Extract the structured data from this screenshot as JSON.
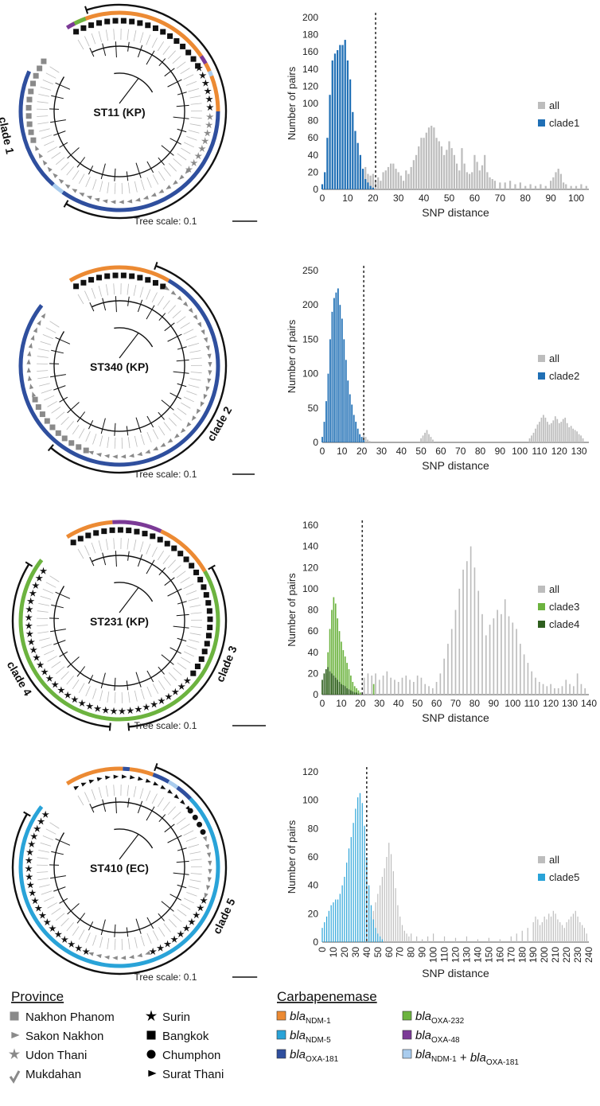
{
  "chart_data": [
    {
      "type": "bar",
      "panel": 1,
      "ylabel": "Number of pairs",
      "xlabel": "SNP distance",
      "ylim": [
        0,
        200
      ],
      "yticks": [
        0,
        20,
        40,
        60,
        80,
        100,
        120,
        140,
        160,
        180,
        200
      ],
      "xlim": [
        0,
        105
      ],
      "xticks": [
        0,
        10,
        20,
        30,
        40,
        50,
        60,
        70,
        80,
        90,
        100
      ],
      "threshold": 21,
      "legend": [
        {
          "label": "all",
          "color": "#bdbdbd"
        },
        {
          "label": "clade1",
          "color": "#1f6fb5"
        }
      ],
      "series": [
        {
          "name": "all",
          "color": "#bdbdbd",
          "x": [
            15,
            16,
            17,
            18,
            19,
            20,
            21,
            22,
            23,
            24,
            25,
            26,
            27,
            28,
            29,
            30,
            31,
            32,
            33,
            34,
            35,
            36,
            37,
            38,
            39,
            40,
            41,
            42,
            43,
            44,
            45,
            46,
            47,
            48,
            49,
            50,
            51,
            52,
            53,
            54,
            55,
            56,
            57,
            58,
            59,
            60,
            61,
            62,
            63,
            64,
            65,
            66,
            67,
            68,
            70,
            72,
            74,
            76,
            78,
            80,
            82,
            84,
            86,
            88,
            90,
            91,
            92,
            93,
            94,
            95,
            96,
            98,
            100,
            102,
            104
          ],
          "values": [
            30,
            22,
            26,
            18,
            16,
            18,
            10,
            14,
            10,
            20,
            22,
            26,
            30,
            30,
            24,
            20,
            16,
            10,
            22,
            18,
            26,
            34,
            40,
            50,
            60,
            60,
            66,
            72,
            74,
            72,
            60,
            56,
            50,
            40,
            46,
            56,
            48,
            40,
            30,
            22,
            48,
            30,
            20,
            18,
            20,
            40,
            32,
            22,
            28,
            40,
            20,
            14,
            12,
            10,
            8,
            8,
            10,
            6,
            8,
            4,
            6,
            4,
            6,
            4,
            10,
            14,
            20,
            24,
            18,
            8,
            6,
            4,
            4,
            6,
            4
          ]
        },
        {
          "name": "clade1",
          "color": "#1f6fb5",
          "x": [
            0,
            1,
            2,
            3,
            4,
            5,
            6,
            7,
            8,
            9,
            10,
            11,
            12,
            13,
            14,
            15,
            16,
            17,
            18,
            19,
            20
          ],
          "values": [
            6,
            20,
            60,
            110,
            150,
            158,
            162,
            168,
            168,
            174,
            150,
            128,
            90,
            68,
            54,
            40,
            24,
            12,
            8,
            4,
            2
          ]
        }
      ]
    },
    {
      "type": "bar",
      "panel": 2,
      "ylabel": "Number of pairs",
      "xlabel": "SNP distance",
      "ylim": [
        0,
        250
      ],
      "yticks": [
        0,
        50,
        100,
        150,
        200,
        250
      ],
      "xlim": [
        0,
        135
      ],
      "xticks": [
        0,
        10,
        20,
        30,
        40,
        50,
        60,
        70,
        80,
        90,
        100,
        110,
        120,
        130
      ],
      "threshold": 21,
      "legend": [
        {
          "label": "all",
          "color": "#bdbdbd"
        },
        {
          "label": "clade2",
          "color": "#1f6fb5"
        }
      ],
      "series": [
        {
          "name": "all",
          "color": "#bdbdbd",
          "x": [
            21,
            22,
            23,
            24,
            50,
            51,
            52,
            53,
            54,
            55,
            56,
            105,
            106,
            107,
            108,
            109,
            110,
            111,
            112,
            113,
            114,
            115,
            116,
            117,
            118,
            119,
            120,
            121,
            122,
            123,
            124,
            125,
            126,
            127,
            128,
            129,
            130,
            131,
            132
          ],
          "values": [
            10,
            8,
            4,
            2,
            6,
            10,
            14,
            18,
            12,
            8,
            4,
            6,
            10,
            14,
            20,
            26,
            30,
            36,
            40,
            36,
            30,
            26,
            28,
            32,
            38,
            34,
            28,
            30,
            34,
            36,
            28,
            22,
            24,
            20,
            18,
            16,
            12,
            10,
            6
          ]
        },
        {
          "name": "clade2",
          "color": "#1f6fb5",
          "x": [
            0,
            1,
            2,
            3,
            4,
            5,
            6,
            7,
            8,
            9,
            10,
            11,
            12,
            13,
            14,
            15,
            16,
            17,
            18,
            19,
            20,
            21
          ],
          "values": [
            8,
            30,
            60,
            100,
            150,
            190,
            210,
            218,
            224,
            200,
            180,
            150,
            120,
            90,
            70,
            55,
            40,
            30,
            20,
            12,
            8,
            4
          ]
        }
      ]
    },
    {
      "type": "bar",
      "panel": 3,
      "ylabel": "Number of pairs",
      "xlabel": "SNP distance",
      "ylim": [
        0,
        160
      ],
      "yticks": [
        0,
        20,
        40,
        60,
        80,
        100,
        120,
        140,
        160
      ],
      "xlim": [
        0,
        140
      ],
      "xticks": [
        0,
        10,
        20,
        30,
        40,
        50,
        60,
        70,
        80,
        90,
        100,
        110,
        120,
        130,
        140
      ],
      "threshold": 21,
      "legend": [
        {
          "label": "all",
          "color": "#bdbdbd"
        },
        {
          "label": "clade3",
          "color": "#6cb33f"
        },
        {
          "label": "clade4",
          "color": "#2e5e1e"
        }
      ],
      "series": [
        {
          "name": "all",
          "color": "#bdbdbd",
          "x": [
            22,
            24,
            26,
            28,
            30,
            32,
            34,
            36,
            38,
            40,
            42,
            44,
            46,
            48,
            50,
            52,
            54,
            56,
            58,
            60,
            62,
            64,
            66,
            68,
            70,
            72,
            74,
            76,
            78,
            80,
            82,
            84,
            86,
            88,
            90,
            92,
            94,
            96,
            98,
            100,
            102,
            104,
            106,
            108,
            110,
            112,
            114,
            116,
            118,
            120,
            122,
            124,
            126,
            128,
            130,
            132,
            134,
            136,
            138
          ],
          "values": [
            16,
            20,
            18,
            20,
            14,
            18,
            22,
            16,
            14,
            12,
            16,
            18,
            14,
            12,
            18,
            16,
            10,
            8,
            6,
            12,
            20,
            34,
            48,
            62,
            80,
            100,
            118,
            126,
            140,
            120,
            98,
            76,
            56,
            66,
            72,
            80,
            76,
            90,
            74,
            68,
            62,
            48,
            38,
            30,
            22,
            16,
            12,
            10,
            8,
            10,
            6,
            6,
            8,
            14,
            10,
            8,
            20,
            10,
            6
          ]
        },
        {
          "name": "clade3",
          "color": "#6cb33f",
          "x": [
            2,
            3,
            4,
            5,
            6,
            7,
            8,
            9,
            10,
            11,
            12,
            13,
            14,
            15,
            16,
            17,
            18,
            19,
            20,
            27
          ],
          "values": [
            20,
            40,
            62,
            80,
            92,
            86,
            72,
            60,
            50,
            42,
            36,
            30,
            24,
            18,
            12,
            8,
            6,
            4,
            2,
            10
          ]
        },
        {
          "name": "clade4",
          "color": "#2e5e1e",
          "x": [
            0,
            1,
            2,
            3,
            4,
            5,
            6,
            7,
            8,
            9,
            10,
            11,
            12,
            13,
            14,
            15,
            16,
            17,
            18,
            19
          ],
          "values": [
            14,
            20,
            24,
            26,
            22,
            20,
            18,
            16,
            14,
            12,
            10,
            9,
            8,
            6,
            5,
            4,
            3,
            2,
            2,
            1
          ]
        }
      ]
    },
    {
      "type": "bar",
      "panel": 4,
      "ylabel": "Number of pairs",
      "xlabel": "SNP distance",
      "ylim": [
        0,
        120
      ],
      "yticks": [
        0,
        20,
        40,
        60,
        80,
        100,
        120
      ],
      "xlim": [
        0,
        240
      ],
      "xticks": [
        0,
        10,
        20,
        30,
        40,
        50,
        60,
        70,
        80,
        90,
        100,
        110,
        120,
        130,
        140,
        150,
        160,
        170,
        180,
        190,
        200,
        210,
        220,
        230,
        240
      ],
      "threshold": 40,
      "legend": [
        {
          "label": "all",
          "color": "#bdbdbd"
        },
        {
          "label": "clade5",
          "color": "#29a3d8"
        }
      ],
      "series": [
        {
          "name": "all",
          "color": "#bdbdbd",
          "x": [
            42,
            44,
            46,
            48,
            50,
            52,
            54,
            56,
            58,
            60,
            62,
            64,
            66,
            68,
            70,
            72,
            74,
            76,
            78,
            80,
            85,
            90,
            95,
            100,
            110,
            120,
            130,
            140,
            150,
            160,
            170,
            175,
            180,
            185,
            190,
            192,
            194,
            196,
            198,
            200,
            202,
            204,
            206,
            208,
            210,
            212,
            214,
            216,
            218,
            220,
            222,
            224,
            226,
            228,
            230,
            232,
            234,
            236,
            238
          ],
          "values": [
            14,
            18,
            22,
            28,
            34,
            40,
            46,
            52,
            60,
            70,
            62,
            50,
            38,
            26,
            18,
            12,
            8,
            6,
            4,
            6,
            4,
            2,
            4,
            6,
            4,
            3,
            4,
            2,
            3,
            2,
            4,
            6,
            8,
            10,
            14,
            18,
            16,
            12,
            14,
            18,
            16,
            20,
            18,
            22,
            20,
            16,
            14,
            12,
            10,
            14,
            16,
            18,
            20,
            22,
            18,
            14,
            12,
            10,
            6
          ]
        },
        {
          "name": "clade5",
          "color": "#29a3d8",
          "x": [
            0,
            2,
            4,
            6,
            8,
            10,
            12,
            14,
            16,
            18,
            20,
            22,
            24,
            26,
            28,
            30,
            32,
            34,
            36,
            38,
            40,
            42,
            44,
            46,
            48,
            50,
            52,
            54
          ],
          "values": [
            10,
            14,
            18,
            22,
            26,
            28,
            30,
            30,
            34,
            40,
            46,
            56,
            66,
            74,
            84,
            94,
            102,
            105,
            98,
            82,
            60,
            40,
            26,
            16,
            10,
            6,
            4,
            2
          ]
        }
      ]
    }
  ],
  "trees": [
    {
      "label": "ST11 (KP)",
      "clades": [
        "clade 1"
      ],
      "scale": "Tree scale: 0.1"
    },
    {
      "label": "ST340 (KP)",
      "clades": [
        "clade 2"
      ],
      "scale": "Tree scale: 0.1"
    },
    {
      "label": "ST231 (KP)",
      "clades": [
        "clade 4",
        "clade 3"
      ],
      "scale": "Tree scale: 0.1"
    },
    {
      "label": "ST410 (EC)",
      "clades": [
        "clade 5"
      ],
      "scale": "Tree scale: 0.1"
    }
  ],
  "legend": {
    "province_title": "Province",
    "provinces": [
      {
        "label": "Nakhon Phanom",
        "symbol": "square",
        "color": "#8a8a8a"
      },
      {
        "label": "Sakon Nakhon",
        "symbol": "triangle",
        "color": "#8a8a8a"
      },
      {
        "label": "Udon Thani",
        "symbol": "star",
        "color": "#8a8a8a"
      },
      {
        "label": "Mukdahan",
        "symbol": "check",
        "color": "#8a8a8a"
      },
      {
        "label": "Surin",
        "symbol": "star",
        "color": "#000000"
      },
      {
        "label": "Bangkok",
        "symbol": "square",
        "color": "#000000"
      },
      {
        "label": "Chumphon",
        "symbol": "circle",
        "color": "#000000"
      },
      {
        "label": "Surat Thani",
        "symbol": "triangle",
        "color": "#000000"
      }
    ],
    "carbapenemase_title": "Carbapenemase",
    "genes": [
      {
        "gene": "bla",
        "sub": "NDM-1",
        "color": "#ec8a33"
      },
      {
        "gene": "bla",
        "sub": "NDM-5",
        "color": "#29a3d8"
      },
      {
        "gene": "bla",
        "sub": "OXA-181",
        "color": "#2f4f9e"
      },
      {
        "gene": "bla",
        "sub": "OXA-232",
        "color": "#6cb33f"
      },
      {
        "gene": "bla",
        "sub": "OXA-48",
        "color": "#7b3a96"
      },
      {
        "gene": "bla",
        "sub": "NDM-1",
        "gene2": "bla",
        "sub2": "OXA-181",
        "color": "#a9ccee"
      }
    ]
  }
}
